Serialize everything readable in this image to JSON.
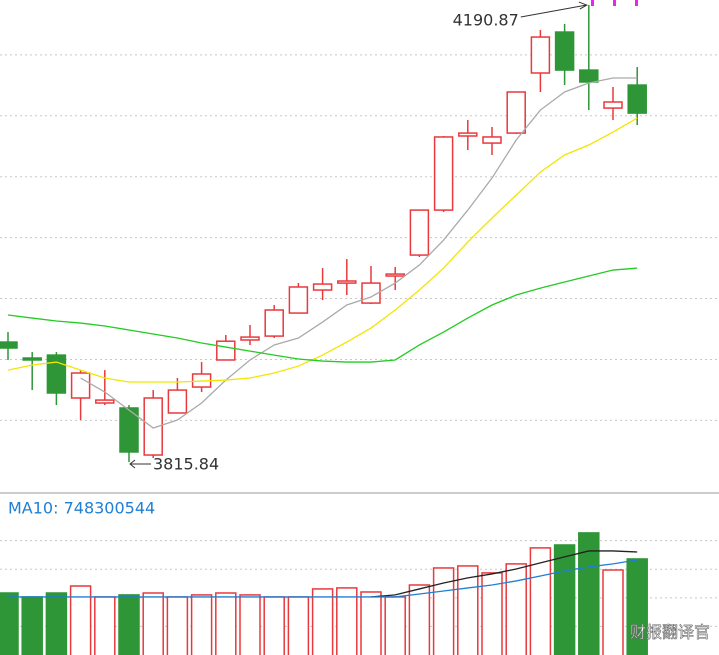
{
  "chart_data": [
    {
      "type": "candlestick",
      "open": [
        3914.3,
        3901.2,
        3903.6,
        3868.4,
        3864.3,
        3860.2,
        3821.6,
        3856.1,
        3877.4,
        3899.6,
        3916.0,
        3919.2,
        3938.1,
        3957.0,
        3962.7,
        3946.3,
        3968.5,
        3985.7,
        4022.6,
        4083.4,
        4077.6,
        4085.8,
        4135.1,
        4168.7,
        4137.5,
        4106.3,
        4125.2
      ],
      "high": [
        3922.5,
        3906.1,
        3906.1,
        3891.3,
        3891.3,
        3862.6,
        3874.9,
        3884.8,
        3897.9,
        3920.1,
        3928.3,
        3944.7,
        3962.7,
        3975.0,
        3982.4,
        3976.7,
        3975.9,
        4022.6,
        4083.4,
        4096.5,
        4090.8,
        4119.5,
        4170.4,
        4175.3,
        4190.87,
        4123.6,
        4140.0
      ],
      "low": [
        3899.6,
        3874.9,
        3862.6,
        3850.3,
        3862.6,
        3815.84,
        3819.1,
        3856.1,
        3873.3,
        3899.6,
        3911.9,
        3917.6,
        3938.1,
        3948.8,
        3952.9,
        3945.5,
        3957.0,
        3984.1,
        4021.0,
        4071.9,
        4067.8,
        4085.0,
        4119.5,
        4125.2,
        4104.7,
        4096.5,
        4092.4
      ],
      "close": [
        3909.4,
        3899.6,
        3872.5,
        3888.9,
        3866.7,
        3824.1,
        3868.4,
        3874.9,
        3888.1,
        3915.0,
        3918.4,
        3940.6,
        3959.5,
        3961.9,
        3964.4,
        3962.7,
        3970.1,
        4022.6,
        4082.6,
        4085.8,
        4082.6,
        4119.5,
        4164.6,
        4137.5,
        4127.7,
        4111.3,
        4102.2
      ],
      "up_color": "#e8393d",
      "down_color": "#2e9637",
      "ylim": [
        3792.9,
        4195.0
      ],
      "gridlines": [
        3850,
        3900,
        3950,
        4000,
        4050,
        4100,
        4150
      ],
      "ma_lines": [
        {
          "color": "#aaaaaa",
          "values": [
            null,
            null,
            null,
            3884.8,
            3873.3,
            3858.5,
            3843.8,
            3850.3,
            3864.3,
            3883.1,
            3899.6,
            3911.9,
            3917.6,
            3930.7,
            3944.7,
            3951.3,
            3962.7,
            3977.5,
            3998.0,
            4022.6,
            4048.9,
            4080.1,
            4104.7,
            4119.5,
            4126.9,
            4131.0,
            4131.0
          ]
        },
        {
          "color": "#f2e600",
          "values": [
            3891.3,
            3895.5,
            3897.9,
            3891.3,
            3884.8,
            3881.5,
            3881.5,
            3881.5,
            3882.3,
            3883.1,
            3884.8,
            3888.9,
            3894.6,
            3903.6,
            3914.3,
            3925.8,
            3940.6,
            3957.0,
            3975.0,
            3996.4,
            4016.1,
            4034.9,
            4053.8,
            4067.8,
            4076.0,
            4086.6,
            4098.1
          ]
        },
        {
          "color": "#22cc22",
          "values": [
            3936.5,
            3934.0,
            3931.6,
            3929.9,
            3927.5,
            3924.2,
            3920.9,
            3917.6,
            3913.5,
            3910.2,
            3906.9,
            3903.6,
            3900.4,
            3898.7,
            3897.9,
            3897.9,
            3899.6,
            3911.9,
            3922.5,
            3934.0,
            3944.7,
            3952.9,
            3958.6,
            3963.6,
            3968.5,
            3973.4,
            3975.0
          ]
        }
      ]
    },
    {
      "type": "bar",
      "label": "MA10: 748300544",
      "values": [
        488000000,
        457000000,
        488000000,
        543000000,
        457000000,
        473000000,
        488000000,
        457000000,
        473000000,
        488000000,
        473000000,
        457000000,
        457000000,
        520000000,
        528000000,
        496000000,
        457000000,
        551000000,
        685000000,
        701000000,
        646000000,
        717000000,
        843000000,
        866000000,
        961000000,
        669000000,
        756000000
      ],
      "ylim": [
        0,
        1220000000
      ],
      "gridlines": [
        225000000,
        450000000,
        675000000,
        900000000
      ],
      "lines": [
        {
          "color": "#222222",
          "values": [
            null,
            null,
            null,
            null,
            null,
            null,
            null,
            null,
            null,
            null,
            null,
            null,
            null,
            null,
            null,
            457000000,
            473000000,
            520000000,
            567000000,
            607000000,
            638000000,
            677000000,
            725000000,
            772000000,
            819000000,
            819000000,
            811000000
          ]
        },
        {
          "color": "#1f7fd4",
          "values": [
            457000000,
            457000000,
            457000000,
            457000000,
            457000000,
            457000000,
            457000000,
            457000000,
            457000000,
            457000000,
            457000000,
            457000000,
            457000000,
            457000000,
            457000000,
            457000000,
            457000000,
            480000000,
            504000000,
            528000000,
            551000000,
            583000000,
            622000000,
            662000000,
            693000000,
            717000000,
            748300544
          ]
        }
      ]
    }
  ],
  "watermark": "财报翻译官"
}
